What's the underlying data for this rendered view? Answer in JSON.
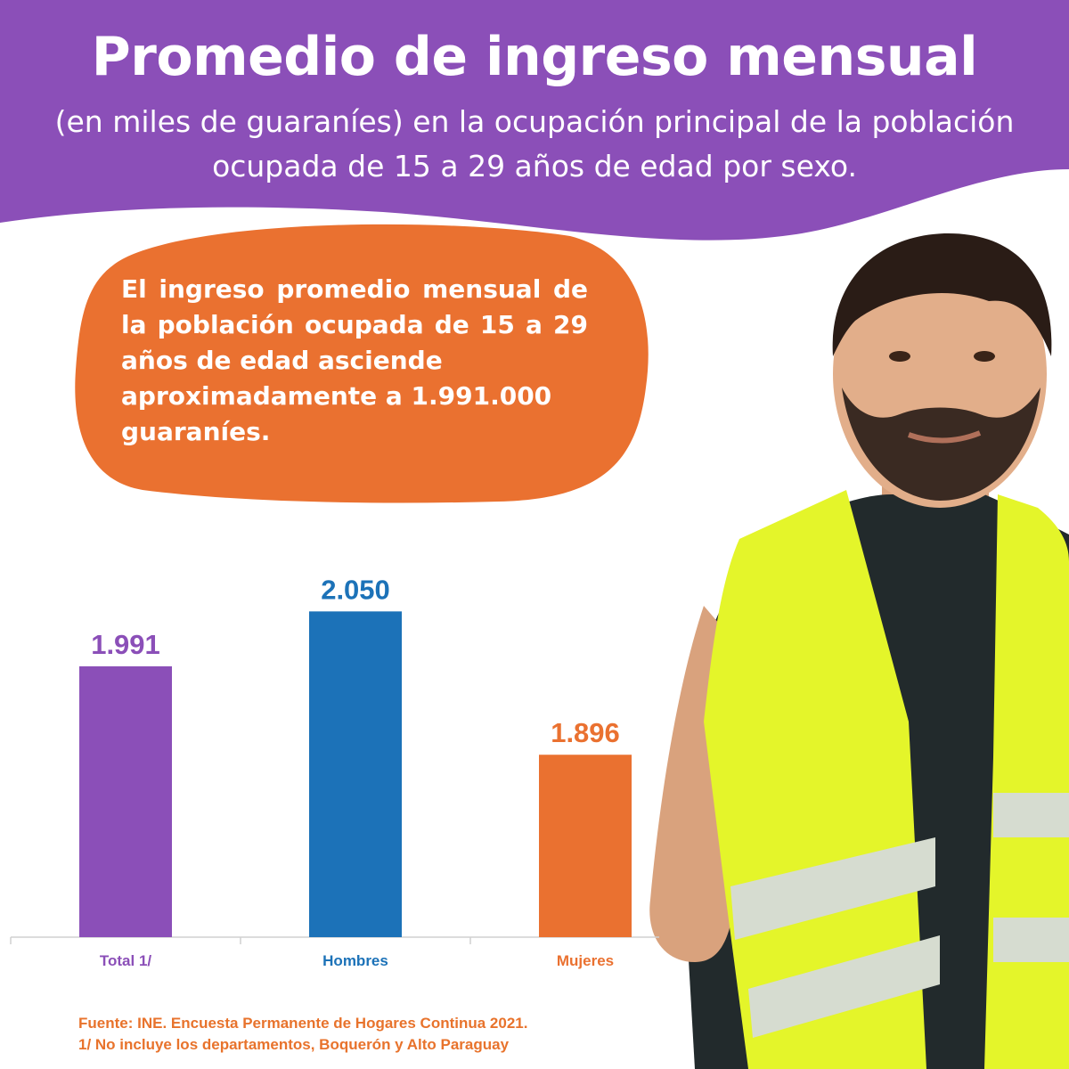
{
  "header": {
    "title": "Promedio de ingreso mensual",
    "subtitle": "(en miles de guaraníes) en la ocupación principal de la población ocupada de 15 a 29 años de edad por sexo."
  },
  "callout": {
    "line1": "El ingreso promedio mensual de la población ocupada de 15 a 29 años de edad asciende",
    "line2": "aproximadamente a 1.991.000 guaraníes."
  },
  "colors": {
    "header_bg": "#8b4fb8",
    "callout_bg": "#ea7130",
    "total": "#8b4fb8",
    "hombres": "#1c72b8",
    "mujeres": "#ea7130"
  },
  "chart_data": {
    "type": "bar",
    "title": "",
    "xlabel": "",
    "ylabel": "",
    "categories": [
      "Total 1/",
      "Hombres",
      "Mujeres"
    ],
    "values": [
      1991,
      2050,
      1896
    ],
    "value_labels": [
      "1.991",
      "2.050",
      "1.896"
    ],
    "bar_colors": [
      "#8b4fb8",
      "#1c72b8",
      "#ea7130"
    ],
    "ylim": [
      1700,
      2080
    ],
    "grid": false,
    "legend": "none"
  },
  "footer": {
    "source": "Fuente: INE. Encuesta Permanente de Hogares Continua 2021.",
    "note": "1/ No incluye los departamentos, Boquerón y Alto Paraguay"
  }
}
